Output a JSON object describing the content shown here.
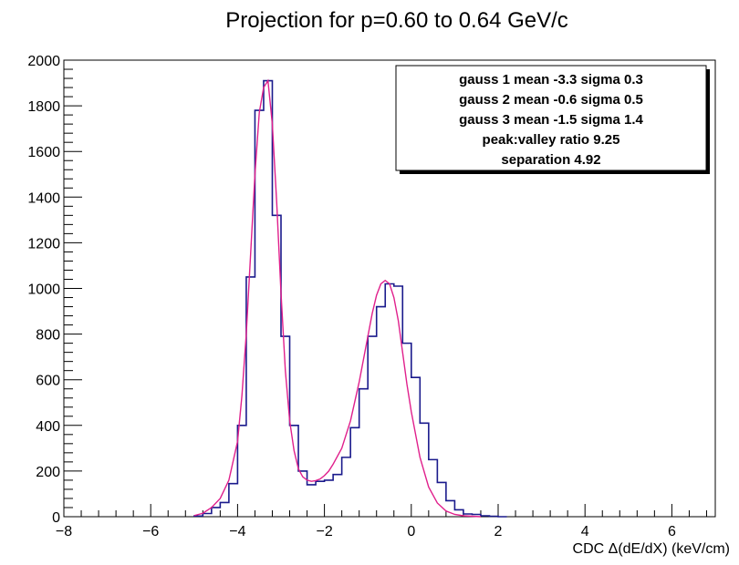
{
  "chart_data": {
    "type": "line",
    "title": "Projection for  p=0.60 to 0.64 GeV/c",
    "xlabel": "CDC Δ(dE/dX) (keV/cm)",
    "ylabel": "",
    "xlim": [
      -8,
      7
    ],
    "ylim": [
      0,
      2000
    ],
    "x_ticks": [
      -8,
      -6,
      -4,
      -2,
      0,
      2,
      4,
      6
    ],
    "y_ticks": [
      0,
      200,
      400,
      600,
      800,
      1000,
      1200,
      1400,
      1600,
      1800,
      2000
    ],
    "grid": false,
    "legend_position": "top-right",
    "legend_lines": [
      "gauss 1 mean -3.3 sigma 0.3",
      "gauss 2 mean -0.6 sigma 0.5",
      "gauss 3 mean -1.5 sigma 1.4",
      "peak:valley ratio 9.25",
      "separation 4.92"
    ],
    "colors": {
      "histogram": "#1a1a8c",
      "fit": "#e0208c",
      "axis": "#000000"
    },
    "histogram": {
      "bin_edges": [
        -5.0,
        -4.8,
        -4.6,
        -4.4,
        -4.2,
        -4.0,
        -3.8,
        -3.6,
        -3.4,
        -3.2,
        -3.0,
        -2.8,
        -2.6,
        -2.4,
        -2.2,
        -2.0,
        -1.8,
        -1.6,
        -1.4,
        -1.2,
        -1.0,
        -0.8,
        -0.6,
        -0.4,
        -0.2,
        0.0,
        0.2,
        0.4,
        0.6,
        0.8,
        1.0,
        1.2,
        1.4,
        1.6,
        1.8,
        2.0,
        2.2
      ],
      "counts": [
        3,
        14,
        40,
        62,
        145,
        400,
        1050,
        1780,
        1910,
        1320,
        790,
        400,
        200,
        140,
        155,
        160,
        185,
        260,
        390,
        560,
        790,
        920,
        1020,
        1010,
        760,
        610,
        410,
        250,
        150,
        70,
        30,
        12,
        10,
        4,
        2,
        0
      ]
    },
    "fit_curve": {
      "x": [
        -5.0,
        -4.8,
        -4.6,
        -4.4,
        -4.2,
        -4.0,
        -3.9,
        -3.8,
        -3.7,
        -3.6,
        -3.5,
        -3.4,
        -3.3,
        -3.2,
        -3.1,
        -3.0,
        -2.9,
        -2.8,
        -2.7,
        -2.6,
        -2.5,
        -2.4,
        -2.3,
        -2.2,
        -2.1,
        -2.0,
        -1.9,
        -1.8,
        -1.6,
        -1.4,
        -1.2,
        -1.0,
        -0.9,
        -0.8,
        -0.7,
        -0.6,
        -0.5,
        -0.4,
        -0.3,
        -0.2,
        -0.1,
        0.0,
        0.2,
        0.4,
        0.6,
        0.8,
        1.0,
        1.2,
        1.4,
        1.6
      ],
      "y": [
        5,
        15,
        40,
        80,
        160,
        330,
        530,
        800,
        1150,
        1500,
        1770,
        1880,
        1910,
        1720,
        1380,
        980,
        640,
        420,
        290,
        210,
        175,
        160,
        155,
        158,
        165,
        180,
        200,
        230,
        300,
        420,
        590,
        790,
        890,
        970,
        1020,
        1035,
        1020,
        960,
        860,
        720,
        580,
        460,
        260,
        130,
        60,
        25,
        10,
        4,
        2,
        0
      ]
    }
  }
}
